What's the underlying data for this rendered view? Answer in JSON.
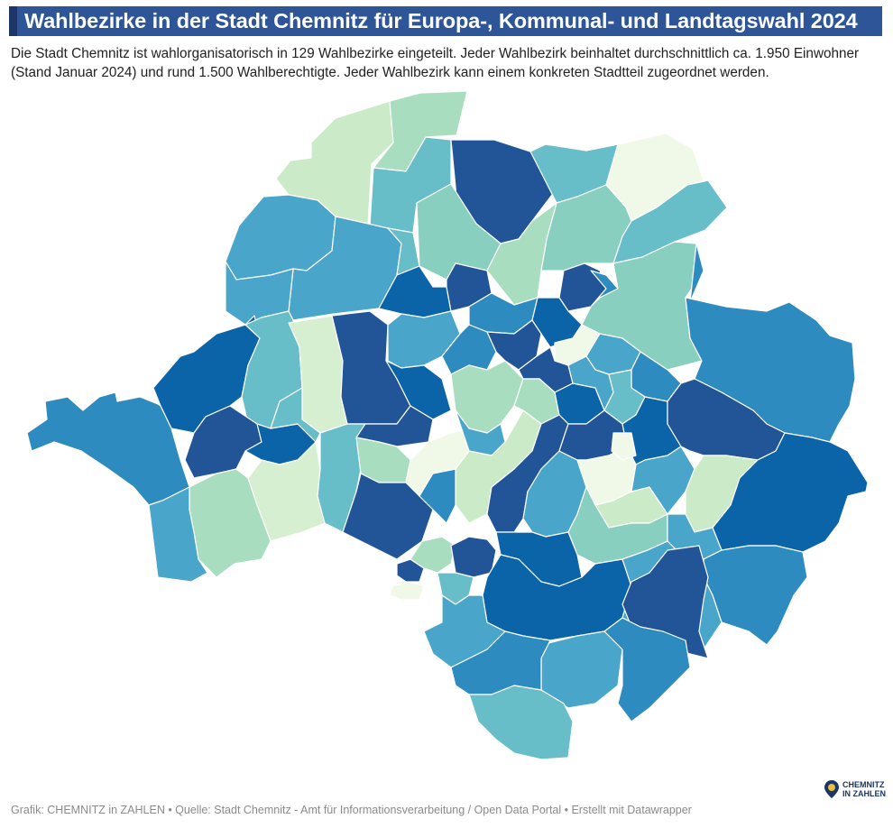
{
  "header": {
    "title": "Wahlbezirke in der Stadt Chemnitz für Europa-, Kommunal- und Landtagswahl 2024",
    "subtitle": "Die Stadt Chemnitz ist wahlorganisatorisch in 129 Wahlbezirke eingeteilt. Jeder Wahlbezirk beinhaltet durchschnittlich ca. 1.950 Einwohner (Stand Januar 2024) und rund 1.500 Wahlberechtigte. Jeder Wahlbezirk kann einem konkreten Stadtteil zugeordnet werden."
  },
  "footer": {
    "credit": "Grafik: CHEMNITZ in ZAHLEN • Quelle: Stadt Chemnitz - Amt für Informationsverarbeitung / Open Data Portal • Erstellt mit Datawrapper"
  },
  "logo": {
    "line1": "CHEMNITZ",
    "line2": "IN ZAHLEN"
  },
  "colors": {
    "title_bg": "#2e5597",
    "title_accent": "#1d3567",
    "palette": [
      "#f0f9e8",
      "#d6efd0",
      "#cbebc8",
      "#a9ddc0",
      "#88cfc0",
      "#68bec8",
      "#4aa5ca",
      "#2e8bc0",
      "#1c6fae",
      "#0c64a8",
      "#225597"
    ]
  }
}
